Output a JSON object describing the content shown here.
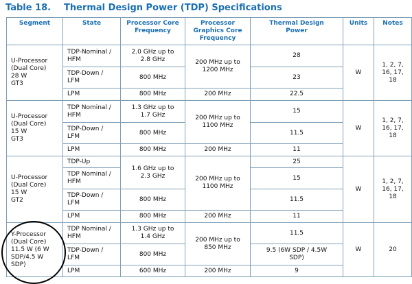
{
  "title": {
    "number": "Table 18.",
    "text": "Thermal Design Power (TDP) Specifications"
  },
  "headers": [
    "Segment",
    "State",
    "Processor Core\nFrequency",
    "Processor\nGraphics Core\nFrequency",
    "Thermal Design\nPower",
    "Units",
    "Notes"
  ],
  "groups": [
    {
      "segment": "U-Processor\n(Dual Core)\n28 W\nGT3",
      "gfx": "200 MHz up to\n1200 MHz",
      "units": "W",
      "notes": "1, 2, 7,\n16, 17,\n18",
      "rows": [
        {
          "state": "TDP-Nominal /\nHFM",
          "core": "2.0 GHz up to\n2.8 GHz",
          "tdp": "28"
        },
        {
          "state": "TDP-Down /\nLFM",
          "core": "800 MHz",
          "tdp": "23"
        },
        {
          "state": "LPM",
          "core": "800 MHz",
          "gfx": "200 MHz",
          "tdp": "22.5"
        }
      ]
    },
    {
      "segment": "U-Processor\n(Dual Core)\n15 W\nGT3",
      "gfx": "200 MHz up to\n1100 MHz",
      "units": "W",
      "notes": "1, 2, 7,\n16, 17,\n18",
      "rows": [
        {
          "state": "TDP Nominal /\nHFM",
          "core": "1.3 GHz up to\n1.7 GHz",
          "tdp": "15"
        },
        {
          "state": "TDP-Down /\nLFM",
          "core": "800 MHz",
          "tdp": "11.5"
        },
        {
          "state": "LPM",
          "core": "800 MHz",
          "gfx": "200 MHz",
          "tdp": "11"
        }
      ]
    },
    {
      "segment": "U-Processor\n(Dual Core)\n15 W\nGT2",
      "gfx": "200 MHz up to\n1100 MHz",
      "units": "W",
      "notes": "1, 2, 7,\n16, 17,\n18",
      "core_merged": "1.6 GHz up to\n2.3 GHz",
      "rows": [
        {
          "state": "TDP-Up",
          "tdp": "25"
        },
        {
          "state": "TDP Nominal /\nHFM",
          "tdp": "15"
        },
        {
          "state": "TDP-Down /\nLFM",
          "core": "800 MHz",
          "tdp": "11.5"
        },
        {
          "state": "LPM",
          "core": "800 MHz",
          "gfx": "200 MHz",
          "tdp": "11"
        }
      ]
    },
    {
      "segment": "Y-Processor\n(Dual Core)\n11.5 W (6 W\nSDP/4.5 W\nSDP)",
      "gfx": "200 MHz up to\n850 MHz",
      "units": "W",
      "notes": "20",
      "rows": [
        {
          "state": "TDP Nominal /\nHFM",
          "core": "1.3 GHz up to\n1.4 GHz",
          "tdp": "11.5"
        },
        {
          "state": "TDP-Down /\nLFM",
          "core": "800 MHz",
          "tdp": "9.5 (6W SDP / 4.5W\nSDP)"
        },
        {
          "state": "LPM",
          "core": "600 MHz",
          "gfx": "200 MHz",
          "tdp": "9"
        }
      ]
    }
  ]
}
